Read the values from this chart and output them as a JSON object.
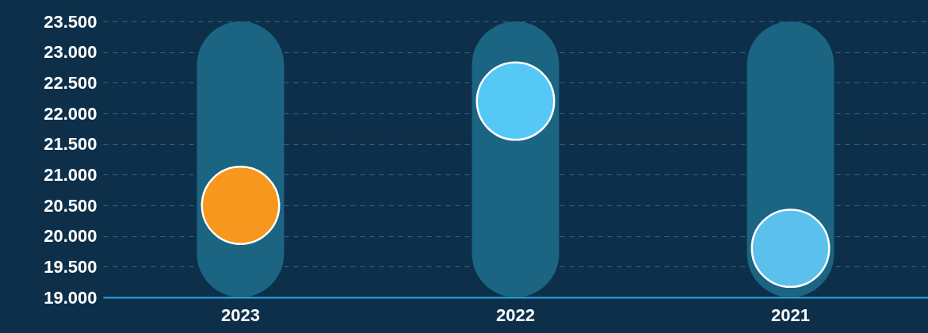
{
  "chart_data": {
    "type": "bar",
    "categories": [
      "2023",
      "2022",
      "2021"
    ],
    "series": [
      {
        "color": "#1b6482",
        "values": [
          23500,
          23500,
          23500
        ]
      },
      {
        "type": "scatter",
        "colors": [
          "#f7971e",
          "#55c8f5",
          "#5bc0ec"
        ],
        "values": [
          20500,
          22200,
          19800
        ]
      }
    ],
    "ylim": [
      19000,
      23500
    ],
    "yticks": [
      {
        "value": 19000,
        "label": "19.000"
      },
      {
        "value": 19500,
        "label": "19.500"
      },
      {
        "value": 20000,
        "label": "20.000"
      },
      {
        "value": 20500,
        "label": "20.500"
      },
      {
        "value": 21000,
        "label": "21.000"
      },
      {
        "value": 21500,
        "label": "21.500"
      },
      {
        "value": 22000,
        "label": "22.000"
      },
      {
        "value": 22500,
        "label": "22.500"
      },
      {
        "value": 23000,
        "label": "23.000"
      },
      {
        "value": 23500,
        "label": "23.500"
      }
    ],
    "grid": "y",
    "marker": "circle"
  }
}
